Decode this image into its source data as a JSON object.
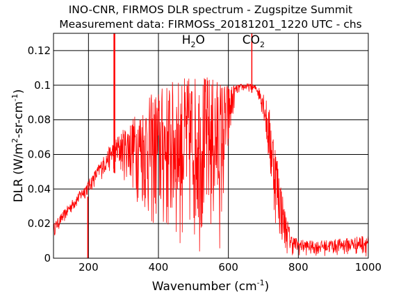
{
  "chart_data": {
    "type": "line",
    "title": "INO-CNR, FIRMOS DLR spectrum - Zugspitze Summit",
    "subtitle": "Measurement data: FIRMOSs_20181201_1220 UTC - chs",
    "xlabel": "Wavenumber (cm",
    "xlabel_sup": "-1",
    "xlabel_end": ")",
    "ylabel": "DLR (W/m",
    "ylabel_sup1": "2",
    "ylabel_mid": "-sr-cm",
    "ylabel_sup2": "-1",
    "ylabel_end": ")",
    "xlim": [
      100,
      1000
    ],
    "ylim": [
      0,
      0.13
    ],
    "x_ticks": [
      {
        "value": 200,
        "label": "200"
      },
      {
        "value": 400,
        "label": "400"
      },
      {
        "value": 600,
        "label": "600"
      },
      {
        "value": 800,
        "label": "800"
      },
      {
        "value": 1000,
        "label": "1000"
      }
    ],
    "y_ticks": [
      {
        "value": 0,
        "label": "0"
      },
      {
        "value": 0.02,
        "label": "0.02"
      },
      {
        "value": 0.04,
        "label": "0.04"
      },
      {
        "value": 0.06,
        "label": "0.06"
      },
      {
        "value": 0.08,
        "label": "0.08"
      },
      {
        "value": 0.1,
        "label": "0.1"
      },
      {
        "value": 0.12,
        "label": "0.12"
      }
    ],
    "grid": true,
    "annotations": [
      {
        "x": 500,
        "y": 0.124,
        "text": "H",
        "sub": "2",
        "tail": "O"
      },
      {
        "x": 672,
        "y": 0.124,
        "text": "CO",
        "sub": "2",
        "tail": ""
      }
    ],
    "series": [
      {
        "color": "#ff0000",
        "envelope": {
          "x": [
            100,
            150,
            200,
            240,
            270,
            300,
            340,
            380,
            420,
            460,
            500,
            540,
            580,
            600,
            620,
            640,
            660,
            680,
            700,
            720,
            740,
            760,
            780,
            800,
            850,
            900,
            950,
            1000
          ],
          "upper": [
            0.02,
            0.033,
            0.045,
            0.058,
            0.068,
            0.075,
            0.085,
            0.095,
            0.101,
            0.104,
            0.106,
            0.106,
            0.104,
            0.101,
            0.1,
            0.101,
            0.101,
            0.1,
            0.097,
            0.085,
            0.06,
            0.03,
            0.014,
            0.011,
            0.01,
            0.011,
            0.012,
            0.014
          ],
          "lower": [
            0.012,
            0.025,
            0.036,
            0.046,
            0.05,
            0.045,
            0.03,
            0.01,
            0.002,
            0.001,
            0.001,
            0.001,
            0.002,
            0.05,
            0.093,
            0.096,
            0.096,
            0.095,
            0.08,
            0.035,
            0.01,
            0.002,
            0.001,
            0.001,
            0.001,
            0.001,
            0.001,
            0.001
          ]
        },
        "spikes": [
          {
            "x": 198,
            "y": 0.0
          },
          {
            "x": 273,
            "y": 0.13
          },
          {
            "x": 275,
            "y": 0.13
          },
          {
            "x": 667,
            "y": 0.13
          }
        ]
      }
    ]
  }
}
